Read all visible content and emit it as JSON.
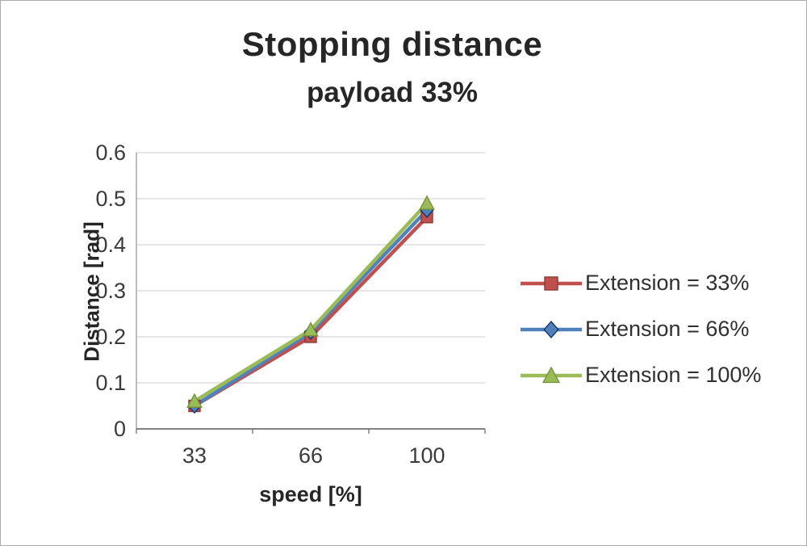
{
  "chart_data": {
    "type": "line",
    "title": "Stopping distance",
    "subtitle": "payload 33%",
    "xlabel": "speed [%]",
    "ylabel": "Distance [rad]",
    "categories": [
      "33",
      "66",
      "100"
    ],
    "ylim": [
      0,
      0.6
    ],
    "ytick_step": 0.1,
    "grid": true,
    "legend_position": "right",
    "series": [
      {
        "name": "Extension = 33%",
        "marker": "square",
        "color": "#C0504D",
        "edge": "#8C3836",
        "values": [
          0.05,
          0.2,
          0.46
        ]
      },
      {
        "name": "Extension = 66%",
        "marker": "diamond",
        "color": "#4F81BD",
        "edge": "#17375E",
        "values": [
          0.05,
          0.21,
          0.475
        ]
      },
      {
        "name": "Extension = 100%",
        "marker": "triangle",
        "color": "#9BBB59",
        "edge": "#77933C",
        "values": [
          0.06,
          0.215,
          0.49
        ]
      }
    ]
  }
}
